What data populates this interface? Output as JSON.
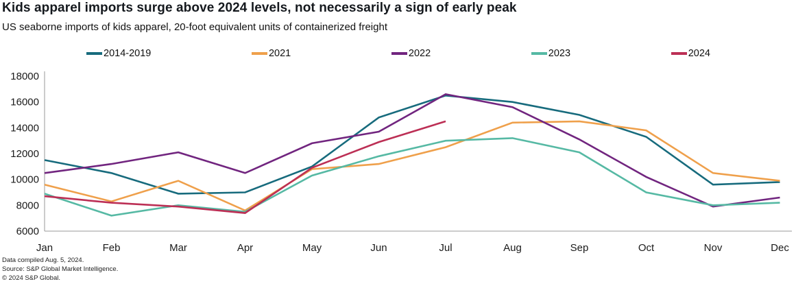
{
  "header": {
    "title": "Kids apparel imports surge above 2024 levels, not necessarily a sign of early peak",
    "subtitle": "US seaborne imports of kids apparel, 20-foot equivalent units of containerized freight"
  },
  "chart_data": {
    "type": "line",
    "x": [
      "Jan",
      "Feb",
      "Mar",
      "Apr",
      "May",
      "Jun",
      "Jul",
      "Aug",
      "Sep",
      "Oct",
      "Nov",
      "Dec"
    ],
    "series": [
      {
        "name": "2014-2019",
        "color": "#176b7d",
        "values": [
          11500,
          10500,
          8900,
          9000,
          11000,
          14800,
          16500,
          16000,
          15000,
          13300,
          9600,
          9800
        ]
      },
      {
        "name": "2021",
        "color": "#efa04b",
        "values": [
          9600,
          8300,
          9900,
          7600,
          10800,
          11200,
          12500,
          14400,
          14500,
          13800,
          10500,
          9900
        ]
      },
      {
        "name": "2022",
        "color": "#71257f",
        "values": [
          10500,
          11200,
          12100,
          10500,
          12800,
          13700,
          16600,
          15600,
          13100,
          10200,
          7900,
          8600
        ]
      },
      {
        "name": "2023",
        "color": "#56b9a4",
        "values": [
          8900,
          7200,
          8000,
          7500,
          10300,
          11800,
          13000,
          13200,
          12100,
          9000,
          8000,
          8200
        ]
      },
      {
        "name": "2024",
        "color": "#bc2f55",
        "values": [
          8700,
          8200,
          7900,
          7400,
          10900,
          12900,
          14500,
          null,
          null,
          null,
          null,
          null
        ]
      }
    ],
    "ylim": [
      6000,
      18000
    ],
    "yticks": [
      6000,
      8000,
      10000,
      12000,
      14000,
      16000,
      18000
    ],
    "grid": false,
    "legend_position": "top",
    "axis_color": "#9a9a9a",
    "tick_label_color": "#1a1a1a"
  },
  "footer": {
    "lines": [
      "Data compiled Aug. 5, 2024.",
      "Source: S&P Global Market Intelligence.",
      "© 2024 S&P Global."
    ]
  }
}
